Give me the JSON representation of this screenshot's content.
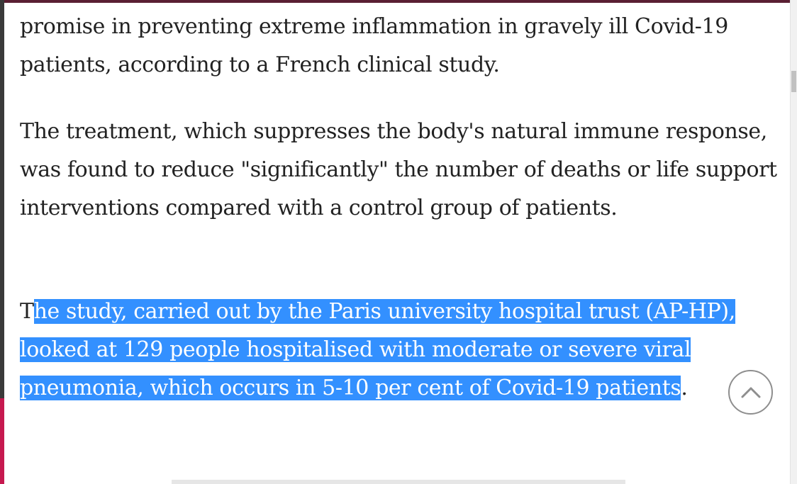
{
  "article": {
    "paragraph_1": "promise in preventing extreme inflammation in gravely ill Covid-19 patients, according to a French clinical study.",
    "paragraph_2": "The treatment, which suppresses the body's natural immune response, was found to reduce \"significantly\" the number of deaths or life support interventions compared with a control group of patients.",
    "paragraph_3": {
      "before_selection": "T",
      "selected": "he study, carried out by the Paris university hospital trust (AP-HP), looked at 129 people hospitalised with moderate or severe viral pneumonia, which occurs in 5-10 per cent of Covid-19 patients",
      "after_selection": "."
    }
  },
  "scroll_to_top": {
    "icon": "chevron-up-icon"
  },
  "colors": {
    "selection": "#3390ff",
    "text": "#222222",
    "accent": "#c6194f"
  }
}
